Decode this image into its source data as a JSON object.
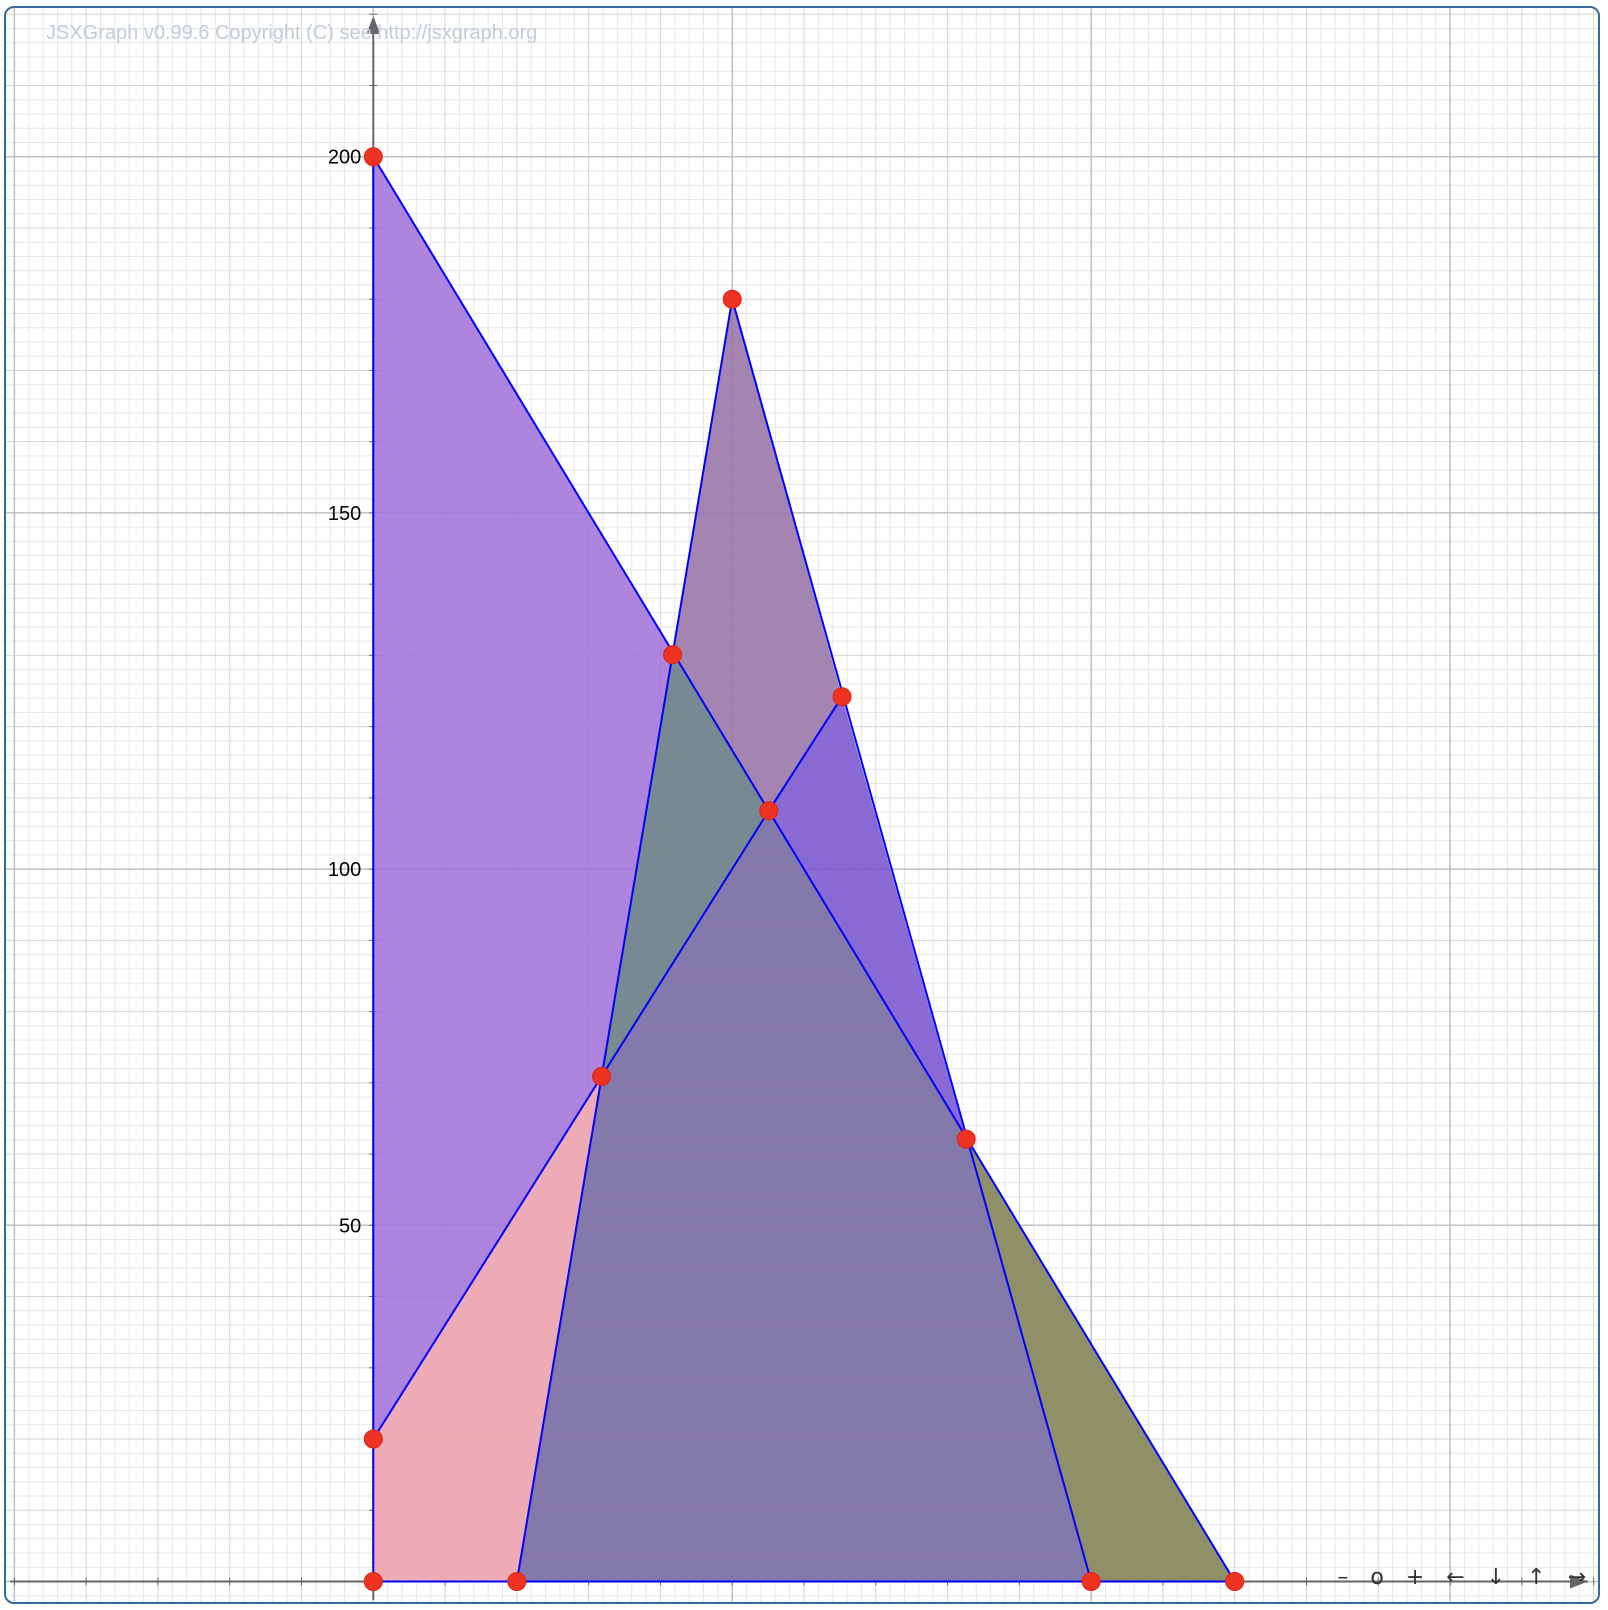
{
  "copyright": "JSXGraph v0.99.6 Copyright (C) see http://jsxgraph.org",
  "navigation": {
    "zoom_out": "–",
    "zoom_reset": "o",
    "zoom_in": "+",
    "left": "←",
    "down": "↓",
    "up": "↑",
    "right": "→"
  },
  "colors": {
    "axis": "#666666",
    "grid_major": "#c0c0c0",
    "grid_minor": "#e6e6e6",
    "edge": "#0000ff",
    "point": "#ee3322"
  },
  "chart_data": {
    "type": "geometry",
    "x_range": [
      -52,
      172
    ],
    "y_range": [
      -4,
      222
    ],
    "y_ticks": [
      50,
      100,
      150,
      200
    ],
    "grid": true,
    "points": [
      {
        "x": 0,
        "y": 200
      },
      {
        "x": 50,
        "y": 180
      },
      {
        "x": 41.7,
        "y": 130.1
      },
      {
        "x": 65.3,
        "y": 124.2
      },
      {
        "x": 55.1,
        "y": 108.2
      },
      {
        "x": 31.8,
        "y": 70.9
      },
      {
        "x": 82.6,
        "y": 62.1
      },
      {
        "x": 0,
        "y": 20
      },
      {
        "x": 0,
        "y": 0
      },
      {
        "x": 20,
        "y": 0
      },
      {
        "x": 100,
        "y": 0
      },
      {
        "x": 120,
        "y": 0
      }
    ],
    "polygons": [
      {
        "fill": "#a070d8",
        "opacity": 0.85,
        "vertices": [
          [
            0,
            0
          ],
          [
            0,
            200
          ],
          [
            120,
            0
          ]
        ]
      },
      {
        "fill": "#f4b0b0",
        "opacity": 0.9,
        "vertices": [
          [
            0,
            0
          ],
          [
            0,
            20
          ],
          [
            31.8,
            70.9
          ],
          [
            20,
            0
          ]
        ]
      },
      {
        "fill": "#9a78a8",
        "opacity": 0.9,
        "vertices": [
          [
            41.7,
            130.1
          ],
          [
            50,
            180
          ],
          [
            65.3,
            124.2
          ],
          [
            55.1,
            108.2
          ]
        ]
      },
      {
        "fill": "#7d5ad0",
        "opacity": 0.9,
        "vertices": [
          [
            55.1,
            108.2
          ],
          [
            65.3,
            124.2
          ],
          [
            82.6,
            62.1
          ]
        ]
      },
      {
        "fill": "#748a8c",
        "opacity": 0.95,
        "vertices": [
          [
            31.8,
            70.9
          ],
          [
            41.7,
            130.1
          ],
          [
            55.1,
            108.2
          ]
        ]
      },
      {
        "fill": "#8d9060",
        "opacity": 0.95,
        "vertices": [
          [
            82.6,
            62.1
          ],
          [
            100,
            0
          ],
          [
            120,
            0
          ]
        ]
      },
      {
        "fill": "#8278a8",
        "opacity": 0.95,
        "vertices": [
          [
            20,
            0
          ],
          [
            31.8,
            70.9
          ],
          [
            55.1,
            108.2
          ],
          [
            82.6,
            62.1
          ],
          [
            100,
            0
          ]
        ]
      }
    ],
    "edges": [
      [
        [
          0,
          0
        ],
        [
          0,
          200
        ]
      ],
      [
        [
          0,
          200
        ],
        [
          120,
          0
        ]
      ],
      [
        [
          0,
          0
        ],
        [
          120,
          0
        ]
      ],
      [
        [
          0,
          20
        ],
        [
          55.1,
          108.2
        ]
      ],
      [
        [
          55.1,
          108.2
        ],
        [
          65.3,
          124.2
        ]
      ],
      [
        [
          20,
          0
        ],
        [
          50,
          180
        ]
      ],
      [
        [
          50,
          180
        ],
        [
          100,
          0
        ]
      ]
    ]
  }
}
